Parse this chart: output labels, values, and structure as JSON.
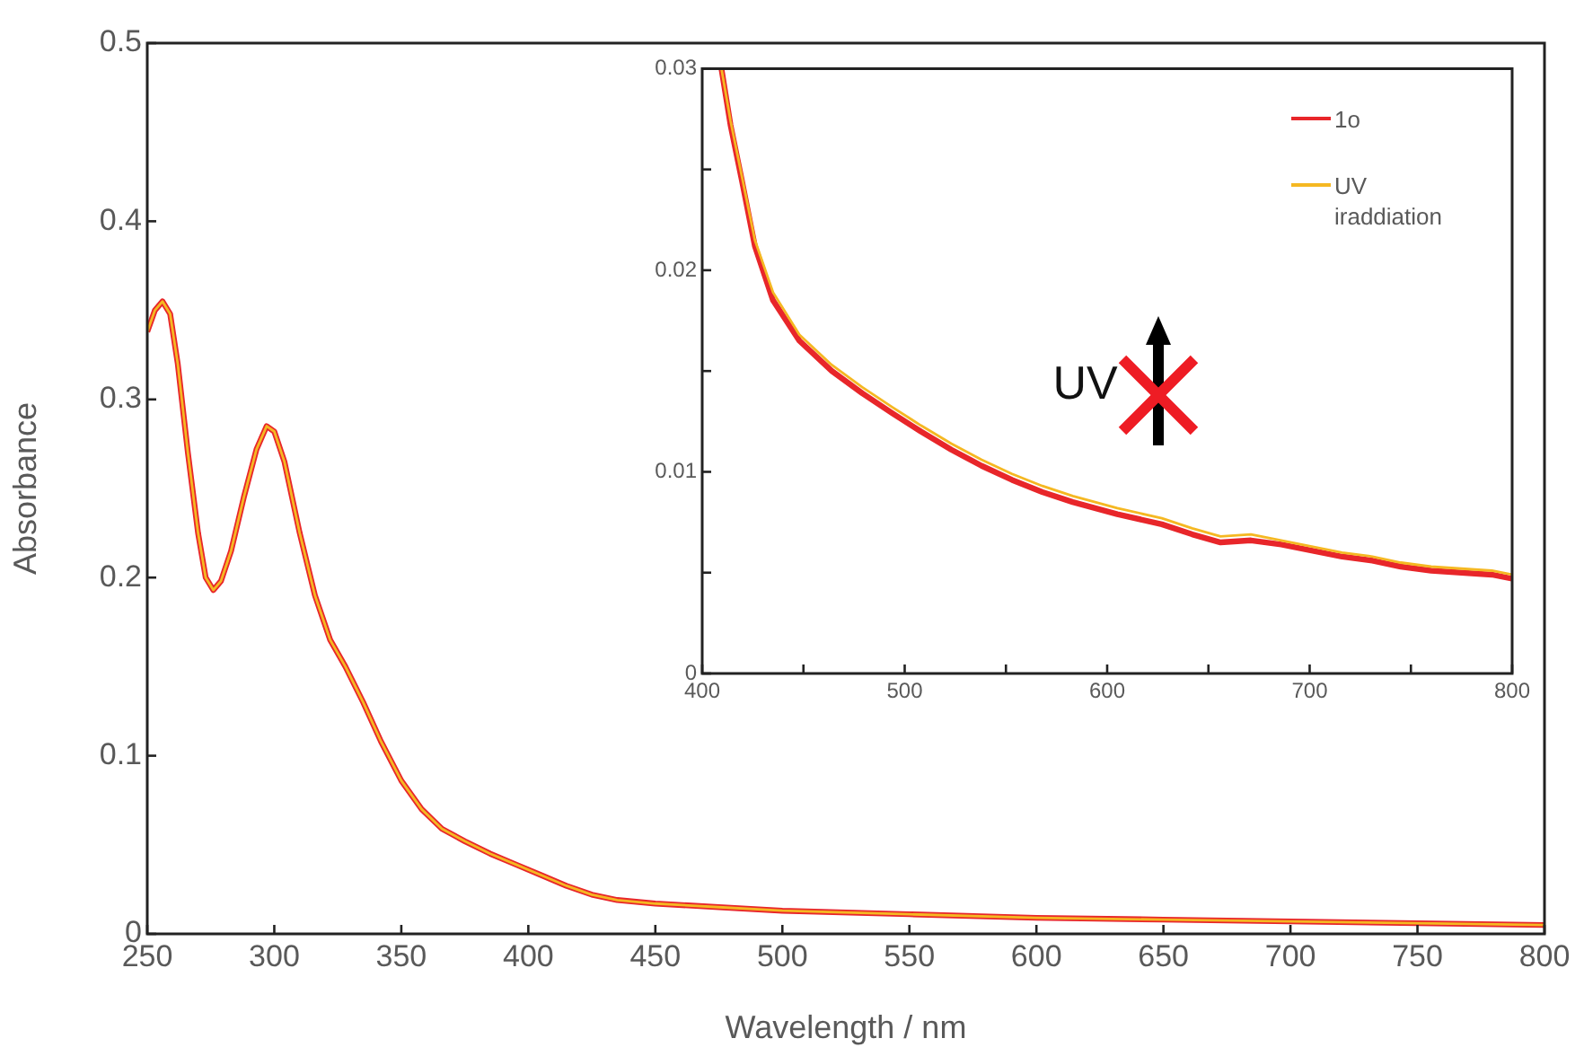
{
  "chart_data": [
    {
      "type": "line",
      "xlabel": "Wavelength / nm",
      "ylabel": "Absorbance",
      "xlim": [
        250,
        800
      ],
      "xticks": [
        250,
        300,
        350,
        400,
        450,
        500,
        550,
        600,
        650,
        700,
        750,
        800
      ],
      "ylim": [
        0,
        0.5
      ],
      "yticks": [
        0,
        0.1,
        0.2,
        0.3,
        0.4,
        0.5
      ],
      "grid": false,
      "legend": false,
      "marker": "none",
      "line_style": "solid",
      "series": [
        {
          "color": "#e8262a",
          "x": [
            250,
            253,
            256,
            259,
            262,
            266,
            270,
            273,
            276,
            279,
            283,
            288,
            293,
            297,
            300,
            304,
            310,
            316,
            322,
            328,
            335,
            342,
            350,
            358,
            366,
            375,
            385,
            395,
            405,
            415,
            425,
            435,
            450,
            475,
            500,
            550,
            600,
            650,
            700,
            750,
            800
          ],
          "values": [
            0.338,
            0.35,
            0.355,
            0.348,
            0.32,
            0.27,
            0.225,
            0.2,
            0.193,
            0.198,
            0.215,
            0.245,
            0.272,
            0.285,
            0.282,
            0.265,
            0.225,
            0.19,
            0.165,
            0.15,
            0.13,
            0.108,
            0.086,
            0.07,
            0.059,
            0.052,
            0.045,
            0.039,
            0.033,
            0.027,
            0.022,
            0.019,
            0.017,
            0.015,
            0.013,
            0.011,
            0.009,
            0.008,
            0.007,
            0.006,
            0.005
          ]
        },
        {
          "color": "#f5b822",
          "x": [
            250,
            253,
            256,
            259,
            262,
            266,
            270,
            273,
            276,
            279,
            283,
            288,
            293,
            297,
            300,
            304,
            310,
            316,
            322,
            328,
            335,
            342,
            350,
            358,
            366,
            375,
            385,
            395,
            405,
            415,
            425,
            435,
            450,
            475,
            500,
            550,
            600,
            650,
            700,
            750,
            800
          ],
          "values": [
            0.338,
            0.35,
            0.355,
            0.348,
            0.32,
            0.27,
            0.225,
            0.2,
            0.193,
            0.198,
            0.215,
            0.245,
            0.272,
            0.285,
            0.282,
            0.265,
            0.225,
            0.19,
            0.165,
            0.15,
            0.13,
            0.108,
            0.086,
            0.07,
            0.059,
            0.052,
            0.045,
            0.039,
            0.033,
            0.027,
            0.022,
            0.019,
            0.017,
            0.015,
            0.013,
            0.011,
            0.009,
            0.008,
            0.007,
            0.006,
            0.005
          ]
        }
      ]
    },
    {
      "type": "line",
      "xlim": [
        400,
        800
      ],
      "xticks": [
        400,
        {
          "value": 450,
          "label": null
        },
        500,
        {
          "value": 550,
          "label": null
        },
        600,
        {
          "value": 650,
          "label": null
        },
        700,
        {
          "value": 750,
          "label": null
        },
        800
      ],
      "ylim": [
        0,
        0.03
      ],
      "yticks": [
        0,
        {
          "value": 0.005,
          "label": null
        },
        0.01,
        {
          "value": 0.015,
          "label": null
        },
        0.02,
        {
          "value": 0.025,
          "label": null
        },
        0.03
      ],
      "grid": false,
      "legend": "top right",
      "marker": "none",
      "line_style": "solid",
      "annotations": [
        "UV"
      ],
      "series": [
        {
          "name": "1o",
          "color": "#e8262a",
          "x": [
            409.5,
            414,
            419.5,
            426,
            435,
            448,
            464,
            479,
            494,
            508,
            523,
            538,
            553,
            568,
            583,
            605,
            627,
            642,
            656,
            671,
            686,
            701,
            716,
            731,
            745,
            760,
            775,
            790,
            800
          ],
          "values": [
            0.03,
            0.0272,
            0.0245,
            0.0212,
            0.0185,
            0.0165,
            0.015,
            0.0139,
            0.0129,
            0.012,
            0.0111,
            0.0103,
            0.0096,
            0.009,
            0.0085,
            0.0079,
            0.0074,
            0.0069,
            0.0065,
            0.0066,
            0.0064,
            0.0061,
            0.0058,
            0.0056,
            0.0053,
            0.0051,
            0.005,
            0.0049,
            0.0047
          ]
        },
        {
          "name": "UV iraddiation",
          "color": "#f5b822",
          "x": [
            409.5,
            414,
            419.5,
            426,
            435,
            448,
            464,
            479,
            494,
            508,
            523,
            538,
            553,
            568,
            583,
            605,
            627,
            642,
            656,
            671,
            686,
            701,
            716,
            731,
            745,
            760,
            775,
            790,
            800
          ],
          "values": [
            0.03,
            0.0274,
            0.0247,
            0.0215,
            0.0189,
            0.0168,
            0.0153,
            0.0142,
            0.0132,
            0.0123,
            0.0114,
            0.0106,
            0.0099,
            0.0093,
            0.0088,
            0.0082,
            0.0077,
            0.0072,
            0.0068,
            0.0069,
            0.0066,
            0.0063,
            0.006,
            0.0058,
            0.0055,
            0.0053,
            0.0052,
            0.0051,
            0.0049
          ]
        }
      ]
    }
  ]
}
